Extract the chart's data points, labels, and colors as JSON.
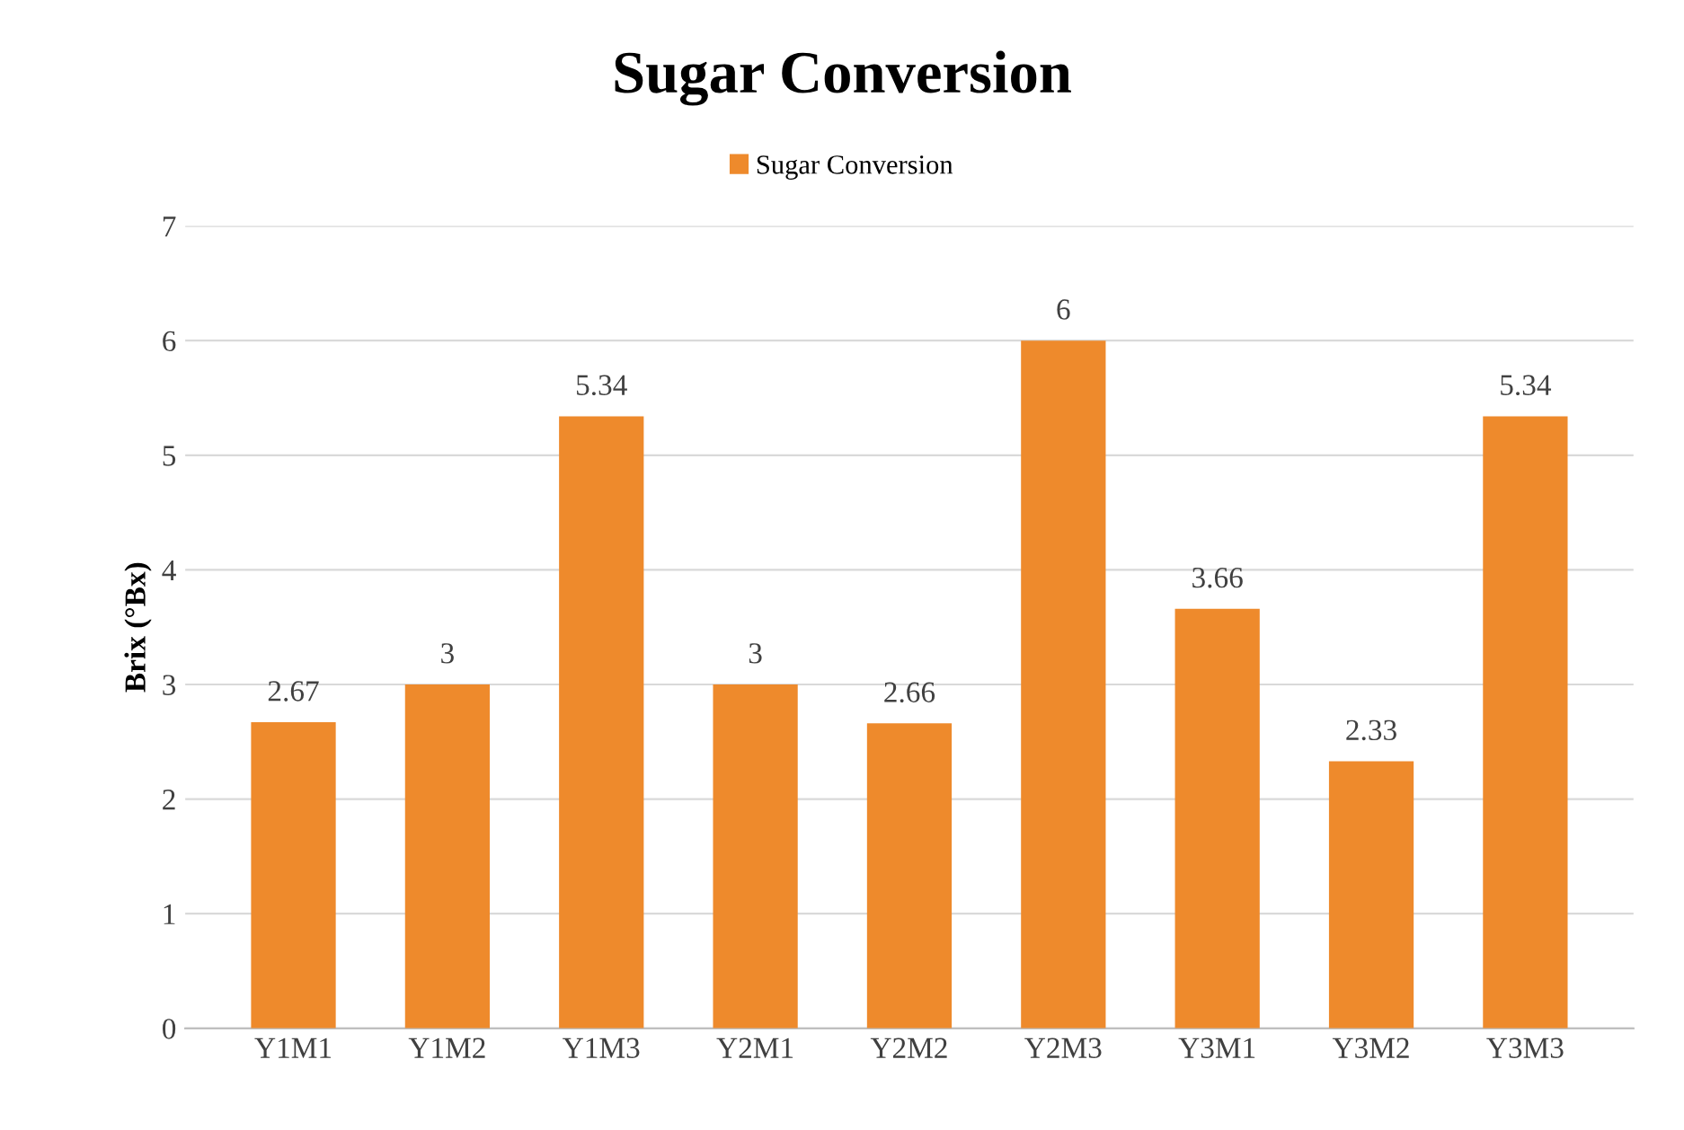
{
  "chart_data": {
    "type": "bar",
    "title": "Sugar Conversion",
    "ylabel": "Brix (°Bx)",
    "categories": [
      "Y1M1",
      "Y1M2",
      "Y1M3",
      "Y2M1",
      "Y2M2",
      "Y2M3",
      "Y3M1",
      "Y3M2",
      "Y3M3"
    ],
    "series": [
      {
        "name": "Sugar Conversion",
        "color": "#ee8a2c",
        "values": [
          2.67,
          3,
          5.34,
          3,
          2.66,
          6,
          3.66,
          2.33,
          5.34
        ]
      }
    ],
    "ylim": [
      0,
      7
    ],
    "yticks": [
      0,
      1,
      2,
      3,
      4,
      5,
      6,
      7
    ],
    "grid": "y",
    "legend": "top",
    "data_labels": true
  }
}
